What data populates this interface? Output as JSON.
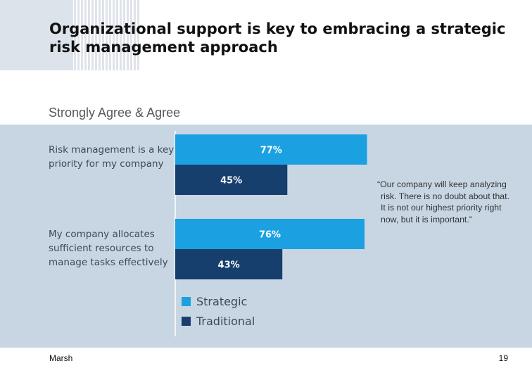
{
  "slide": {
    "title": "Organizational support is key to embracing a strategic risk management approach",
    "subtitle": "Strongly Agree & Agree",
    "quote": "“Our company will keep analyzing risk. There is no doubt about that. It is not our highest priority right now, but it is important.”",
    "source": "Marsh",
    "page_number": "19"
  },
  "chart_data": {
    "type": "bar",
    "orientation": "horizontal",
    "categories": [
      "Risk management is a key priority for my company",
      "My company allocates sufficient resources to manage tasks effectively"
    ],
    "series": [
      {
        "name": "Strategic",
        "color": "#1ba1e2",
        "values": [
          77,
          76
        ],
        "data_labels": [
          "77%",
          "76%"
        ]
      },
      {
        "name": "Traditional",
        "color": "#173f6e",
        "values": [
          45,
          43
        ],
        "data_labels": [
          "45%",
          "43%"
        ]
      }
    ],
    "xlim": [
      0,
      100
    ],
    "unit": "%",
    "legend_position": "bottom-left",
    "grid": false
  }
}
